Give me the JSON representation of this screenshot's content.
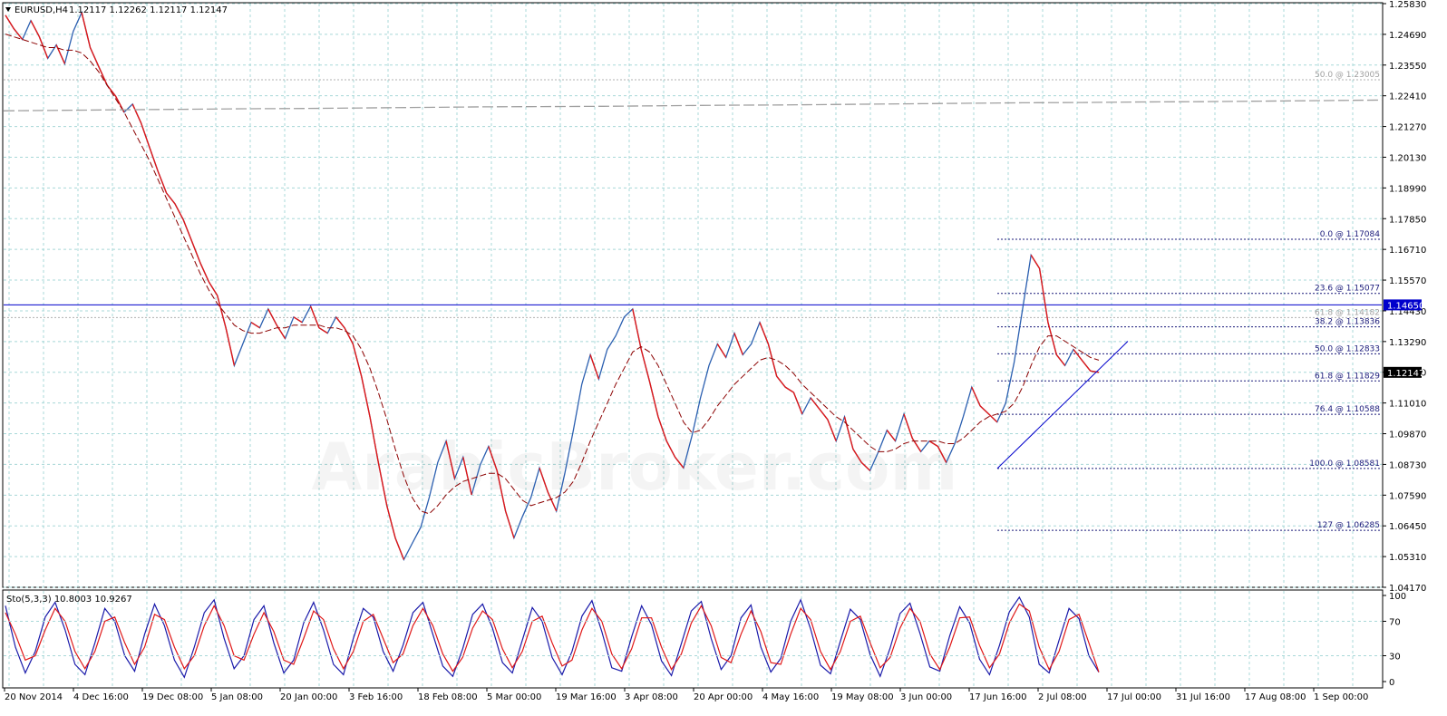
{
  "window": {
    "symbol_label": "EURUSD,H4",
    "ohlc_label": "1.12117 1.12262 1.12117 1.12147"
  },
  "indicator": {
    "label": "Sto(5,3,3) 10.8003 10.9267",
    "levels": [
      "100",
      "70",
      "30",
      "0"
    ]
  },
  "watermark": "ArabicBroker.com",
  "chart_data": {
    "type": "line",
    "title": "",
    "price_ticks": [
      "1.25830",
      "1.24690",
      "1.23550",
      "1.22410",
      "1.21270",
      "1.20130",
      "1.18990",
      "1.17850",
      "1.16710",
      "1.15570",
      "1.14430",
      "1.13290",
      "1.12150",
      "1.11010",
      "1.09870",
      "1.08730",
      "1.07590",
      "1.06450",
      "1.05310",
      "1.04170"
    ],
    "ylim": [
      1.0417,
      1.2583
    ],
    "time_labels": [
      "20 Nov 2014",
      "4 Dec 16:00",
      "19 Dec 08:00",
      "5 Jan 08:00",
      "20 Jan 00:00",
      "3 Feb 16:00",
      "18 Feb 08:00",
      "5 Mar 00:00",
      "19 Mar 16:00",
      "3 Apr 08:00",
      "20 Apr 00:00",
      "4 May 16:00",
      "19 May 08:00",
      "3 Jun 00:00",
      "17 Jun 16:00",
      "2 Jul 08:00",
      "17 Jul 00:00",
      "31 Jul 16:00",
      "17 Aug 08:00",
      "1 Sep 00:00"
    ],
    "series": [
      {
        "values": [
          1.254,
          1.249,
          1.245,
          1.252,
          1.246,
          1.238,
          1.243,
          1.236,
          1.248,
          1.255,
          1.242,
          1.235,
          1.228,
          1.224,
          1.218,
          1.221,
          1.214,
          1.205,
          1.196,
          1.188,
          1.184,
          1.178,
          1.17,
          1.162,
          1.155,
          1.15,
          1.138,
          1.124,
          1.132,
          1.14,
          1.138,
          1.145,
          1.139,
          1.134,
          1.142,
          1.14,
          1.146,
          1.138,
          1.136,
          1.142,
          1.138,
          1.132,
          1.12,
          1.105,
          1.088,
          1.072,
          1.06,
          1.052,
          1.058,
          1.064,
          1.075,
          1.088,
          1.096,
          1.082,
          1.09,
          1.076,
          1.087,
          1.094,
          1.085,
          1.07,
          1.06,
          1.068,
          1.075,
          1.086,
          1.077,
          1.07,
          1.084,
          1.1,
          1.117,
          1.128,
          1.119,
          1.13,
          1.135,
          1.142,
          1.145,
          1.13,
          1.118,
          1.105,
          1.096,
          1.09,
          1.086,
          1.098,
          1.112,
          1.124,
          1.132,
          1.127,
          1.136,
          1.128,
          1.132,
          1.14,
          1.132,
          1.12,
          1.116,
          1.114,
          1.106,
          1.112,
          1.108,
          1.104,
          1.096,
          1.105,
          1.093,
          1.088,
          1.085,
          1.092,
          1.1,
          1.096,
          1.106,
          1.097,
          1.092,
          1.096,
          1.094,
          1.088,
          1.095,
          1.105,
          1.116,
          1.109,
          1.106,
          1.103,
          1.11,
          1.125,
          1.145,
          1.165,
          1.16,
          1.14,
          1.128,
          1.124,
          1.13,
          1.126,
          1.122,
          1.12147
        ]
      },
      {
        "values": [
          1.247,
          1.246,
          1.245,
          1.244,
          1.243,
          1.242,
          1.242,
          1.241,
          1.241,
          1.24,
          1.237,
          1.233,
          1.228,
          1.223,
          1.218,
          1.212,
          1.206,
          1.2,
          1.193,
          1.186,
          1.179,
          1.172,
          1.165,
          1.158,
          1.152,
          1.147,
          1.143,
          1.139,
          1.137,
          1.136,
          1.136,
          1.137,
          1.138,
          1.138,
          1.139,
          1.139,
          1.139,
          1.139,
          1.138,
          1.138,
          1.137,
          1.135,
          1.13,
          1.123,
          1.114,
          1.104,
          1.093,
          1.083,
          1.075,
          1.07,
          1.069,
          1.072,
          1.076,
          1.079,
          1.081,
          1.082,
          1.083,
          1.084,
          1.084,
          1.082,
          1.078,
          1.074,
          1.072,
          1.073,
          1.074,
          1.075,
          1.077,
          1.081,
          1.088,
          1.096,
          1.103,
          1.11,
          1.117,
          1.123,
          1.129,
          1.131,
          1.129,
          1.124,
          1.117,
          1.11,
          1.103,
          1.099,
          1.1,
          1.104,
          1.109,
          1.113,
          1.117,
          1.12,
          1.123,
          1.126,
          1.127,
          1.126,
          1.124,
          1.121,
          1.117,
          1.114,
          1.111,
          1.108,
          1.105,
          1.103,
          1.1,
          1.097,
          1.094,
          1.092,
          1.092,
          1.093,
          1.095,
          1.096,
          1.096,
          1.096,
          1.096,
          1.095,
          1.095,
          1.097,
          1.1,
          1.103,
          1.105,
          1.106,
          1.107,
          1.11,
          1.116,
          1.124,
          1.131,
          1.135,
          1.135,
          1.133,
          1.131,
          1.129,
          1.127,
          1.126
        ]
      },
      {
        "values": [
          1.2185,
          1.2187,
          1.2189,
          1.2191,
          1.2193,
          1.2194,
          1.2196,
          1.2198,
          1.22,
          1.2201,
          1.2202,
          1.2204,
          1.2206,
          1.2207,
          1.2209,
          1.2211,
          1.2213,
          1.2215,
          1.2216,
          1.2218,
          1.2219,
          1.2221,
          1.2223,
          1.2225
        ]
      }
    ],
    "horizontal_lines": [
      {
        "label": "1.14650",
        "value": 1.1465,
        "color": "#0000cc"
      },
      {
        "label": "1.12147",
        "value": 1.12147,
        "color": "#000000"
      }
    ],
    "fibonacci_levels": [
      {
        "label": "0.0 @ 1.17084",
        "value": 1.17084
      },
      {
        "label": "23.6 @ 1.15077",
        "value": 1.15077
      },
      {
        "label": "38.2 @ 1.13836",
        "value": 1.13836
      },
      {
        "label": "50.0 @ 1.12833",
        "value": 1.12833
      },
      {
        "label": "61.8 @ 1.11829",
        "value": 1.11829
      },
      {
        "label": "76.4 @ 1.10588",
        "value": 1.10588
      },
      {
        "label": "100.0 @ 1.08581",
        "value": 1.08581
      },
      {
        "label": "127 @ 1.06285",
        "value": 1.06285
      }
    ],
    "faded_fibonacci_levels": [
      {
        "label": "50.0 @ 1.23005",
        "value": 1.23005
      },
      {
        "label": "61.8 @ 1.14182",
        "value": 1.14182
      }
    ],
    "trendline": {
      "from": 1.0858,
      "to": 1.133
    },
    "stochastic": {
      "ylim": [
        0,
        100
      ],
      "k_values": [
        88,
        40,
        10,
        35,
        75,
        92,
        60,
        20,
        8,
        45,
        85,
        70,
        30,
        12,
        55,
        90,
        65,
        25,
        5,
        40,
        80,
        95,
        50,
        15,
        30,
        72,
        88,
        45,
        10,
        25,
        68,
        92,
        60,
        20,
        8,
        50,
        85,
        75,
        35,
        12,
        42,
        80,
        92,
        55,
        18,
        6,
        38,
        78,
        90,
        62,
        22,
        10,
        48,
        86,
        70,
        28,
        8,
        35,
        76,
        94,
        58,
        16,
        12,
        52,
        88,
        66,
        24,
        7,
        44,
        82,
        93,
        50,
        14,
        30,
        74,
        89,
        40,
        11,
        27,
        70,
        95,
        61,
        19,
        9,
        47,
        84,
        72,
        31,
        6,
        39,
        79,
        91,
        56,
        17,
        12,
        53,
        87,
        68,
        26,
        8,
        42,
        81,
        98,
        75,
        20,
        10,
        48,
        85,
        73,
        30,
        10.8
      ],
      "d_values": [
        80,
        55,
        25,
        30,
        60,
        85,
        70,
        35,
        15,
        35,
        70,
        75,
        45,
        20,
        40,
        78,
        72,
        40,
        15,
        30,
        65,
        88,
        65,
        30,
        25,
        55,
        80,
        58,
        25,
        20,
        50,
        82,
        72,
        38,
        15,
        35,
        70,
        78,
        50,
        22,
        32,
        65,
        85,
        65,
        32,
        12,
        28,
        62,
        82,
        72,
        38,
        16,
        35,
        70,
        76,
        45,
        18,
        25,
        60,
        85,
        70,
        32,
        15,
        38,
        74,
        74,
        40,
        14,
        32,
        68,
        88,
        65,
        28,
        22,
        55,
        82,
        58,
        22,
        20,
        55,
        85,
        72,
        35,
        14,
        35,
        70,
        76,
        45,
        16,
        28,
        62,
        85,
        70,
        32,
        14,
        40,
        74,
        75,
        42,
        16,
        32,
        68,
        90,
        82,
        40,
        14,
        35,
        72,
        78,
        45,
        10.9
      ]
    }
  }
}
